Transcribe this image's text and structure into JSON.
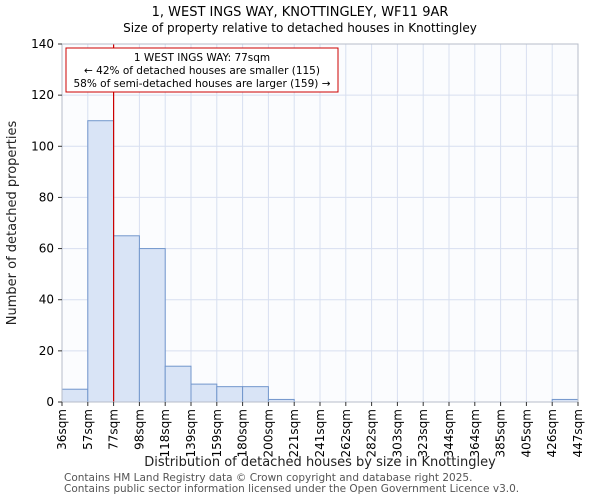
{
  "title": "1, WEST INGS WAY, KNOTTINGLEY, WF11 9AR",
  "subtitle": "Size of property relative to detached houses in Knottingley",
  "chart_data": {
    "type": "bar",
    "categories": [
      "36sqm",
      "57sqm",
      "77sqm",
      "98sqm",
      "118sqm",
      "139sqm",
      "159sqm",
      "180sqm",
      "200sqm",
      "221sqm",
      "241sqm",
      "262sqm",
      "282sqm",
      "303sqm",
      "323sqm",
      "344sqm",
      "364sqm",
      "385sqm",
      "405sqm",
      "426sqm",
      "447sqm"
    ],
    "values": [
      5,
      110,
      65,
      60,
      14,
      7,
      6,
      6,
      1,
      0,
      0,
      0,
      0,
      0,
      0,
      0,
      0,
      0,
      0,
      1
    ],
    "xlabel": "Distribution of detached houses by size in Knottingley",
    "ylabel": "Number of detached properties",
    "ylim": [
      0,
      140
    ],
    "ytick_step": 20,
    "grid": true,
    "colors": {
      "bar_fill": "#d9e4f6",
      "bar_stroke": "#7296cc",
      "gridline": "#d8dff0",
      "plot_border": "#b7bdc9",
      "marker": "#cc0000"
    },
    "marker": {
      "x_label": "77sqm",
      "x_index": 2,
      "annotation_lines": [
        "1 WEST INGS WAY: 77sqm",
        "← 42% of detached houses are smaller (115)",
        "58% of semi-detached houses are larger (159) →"
      ]
    }
  },
  "footer": {
    "line1": "Contains HM Land Registry data © Crown copyright and database right 2025.",
    "line2": "Contains public sector information licensed under the Open Government Licence v3.0."
  }
}
